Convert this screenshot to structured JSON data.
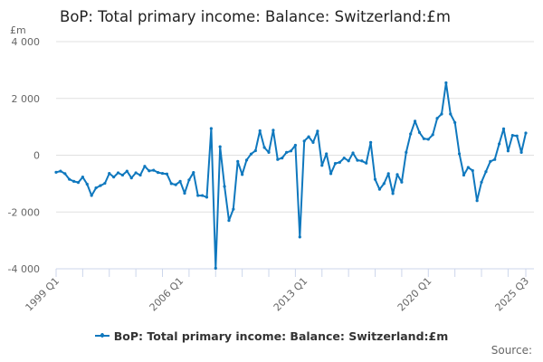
{
  "header": {
    "title": "BoP: Total primary income: Balance: Switzerland:£m",
    "unit_label": "£m"
  },
  "legend": {
    "label": "BoP: Total primary income: Balance: Switzerland:£m",
    "color": "#0f78be"
  },
  "footer": {
    "source_label": "Source:"
  },
  "chart_data": {
    "type": "line",
    "title": "BoP: Total primary income: Balance: Switzerland:£m",
    "xlabel": "",
    "ylabel": "£m",
    "ylim": [
      -4000,
      4000
    ],
    "yticks": [
      4000,
      2000,
      0,
      -2000,
      -4000
    ],
    "ytick_labels": [
      "4 000",
      "2 000",
      "0",
      "-2 000",
      "-4 000"
    ],
    "xtick_labels": [
      "1999 Q1",
      "2006 Q1",
      "2013 Q1",
      "2020 Q1",
      "2025 Q3"
    ],
    "x_start": "1999 Q1",
    "x_end": "2025 Q3",
    "grid": "horizontal",
    "legend_position": "bottom",
    "series": [
      {
        "name": "BoP: Total primary income: Balance: Switzerland:£m",
        "color": "#0f78be",
        "values": [
          -600,
          -560,
          -650,
          -850,
          -920,
          -960,
          -770,
          -1020,
          -1420,
          -1150,
          -1070,
          -990,
          -640,
          -770,
          -620,
          -700,
          -560,
          -800,
          -620,
          -700,
          -390,
          -550,
          -530,
          -610,
          -640,
          -660,
          -1000,
          -1040,
          -920,
          -1340,
          -870,
          -610,
          -1420,
          -1420,
          -1480,
          940,
          -3980,
          300,
          -1100,
          -2300,
          -1900,
          -220,
          -680,
          -170,
          40,
          160,
          860,
          270,
          100,
          880,
          -150,
          -100,
          100,
          150,
          350,
          -2880,
          500,
          650,
          450,
          850,
          -360,
          50,
          -650,
          -290,
          -250,
          -100,
          -200,
          80,
          -180,
          -200,
          -280,
          450,
          -850,
          -1200,
          -1000,
          -650,
          -1350,
          -680,
          -950,
          100,
          750,
          1200,
          800,
          580,
          560,
          720,
          1300,
          1450,
          2550,
          1450,
          1150,
          50,
          -700,
          -430,
          -540,
          -1600,
          -950,
          -580,
          -220,
          -150,
          400,
          930,
          150,
          700,
          680,
          100,
          780
        ]
      }
    ]
  }
}
